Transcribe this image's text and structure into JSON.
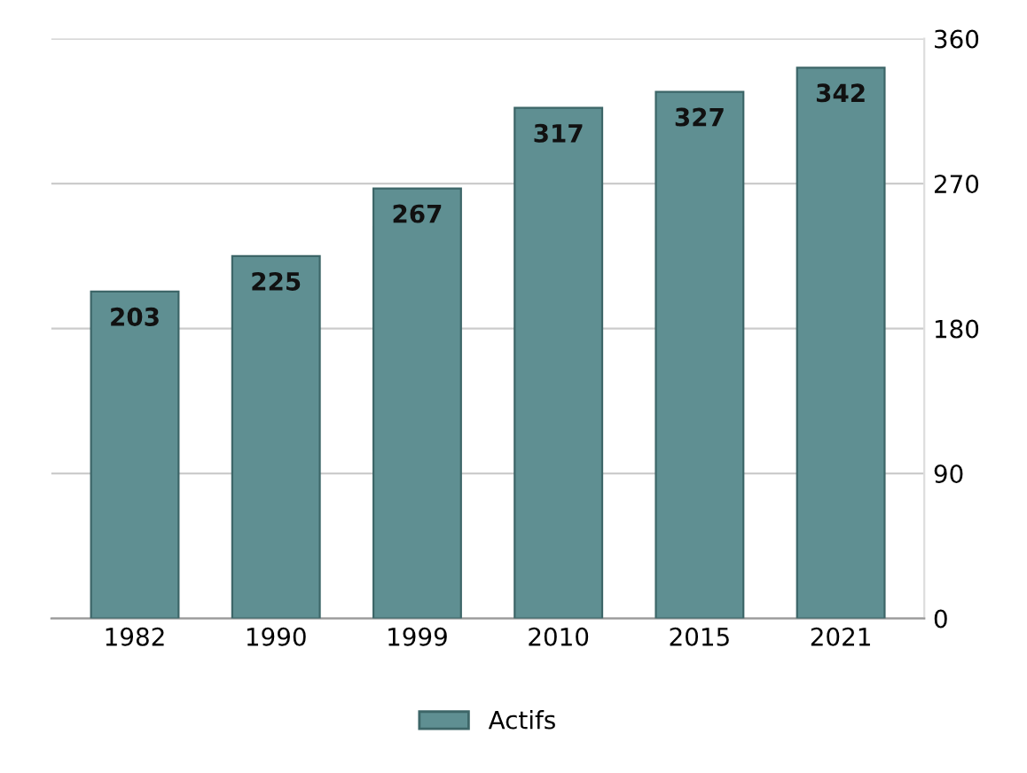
{
  "chart_data": {
    "type": "bar",
    "categories": [
      "1982",
      "1990",
      "1999",
      "2010",
      "2015",
      "2021"
    ],
    "series": [
      {
        "name": "Actifs",
        "color": "#5f8f92",
        "values": [
          203,
          225,
          267,
          317,
          327,
          342
        ]
      }
    ],
    "ylim": [
      0,
      360
    ],
    "yticks": [
      0,
      90,
      180,
      270,
      360
    ],
    "grid": "y",
    "legend": "bottom",
    "data_labels": true
  }
}
